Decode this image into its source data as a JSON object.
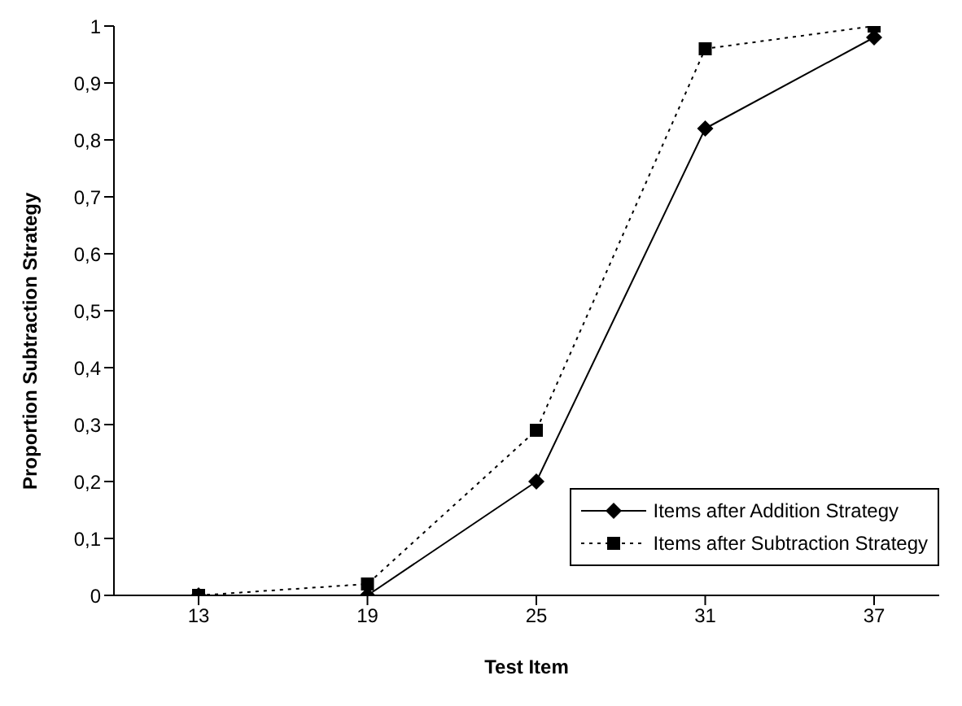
{
  "chart_data": {
    "type": "line",
    "xlabel": "Test Item",
    "ylabel": "Proportion Subtraction Strategy",
    "categories": [
      "13",
      "19",
      "25",
      "31",
      "37"
    ],
    "series": [
      {
        "name": "Items after Addition Strategy",
        "color": "#000000",
        "values": [
          0,
          0,
          0.2,
          0.82,
          0.98
        ],
        "marker": "diamond",
        "line_style": "solid"
      },
      {
        "name": "Items after Subtraction Strategy",
        "color": "#000000",
        "values": [
          0,
          0.02,
          0.29,
          0.96,
          1
        ],
        "marker": "square",
        "line_style": "dotted"
      }
    ],
    "ylim": [
      0,
      1
    ],
    "yticks": [
      0,
      {
        "value": 0.1,
        "label": "0,1"
      },
      {
        "value": 0.2,
        "label": "0,2"
      },
      {
        "value": 0.3,
        "label": "0,3"
      },
      {
        "value": 0.4,
        "label": "0,4"
      },
      {
        "value": 0.5,
        "label": "0,5"
      },
      {
        "value": 0.6,
        "label": "0,6"
      },
      {
        "value": 0.7,
        "label": "0,7"
      },
      {
        "value": 0.8,
        "label": "0,8"
      },
      {
        "value": 0.9,
        "label": "0,9"
      },
      1
    ],
    "grid": false,
    "legend": "bottom right"
  }
}
